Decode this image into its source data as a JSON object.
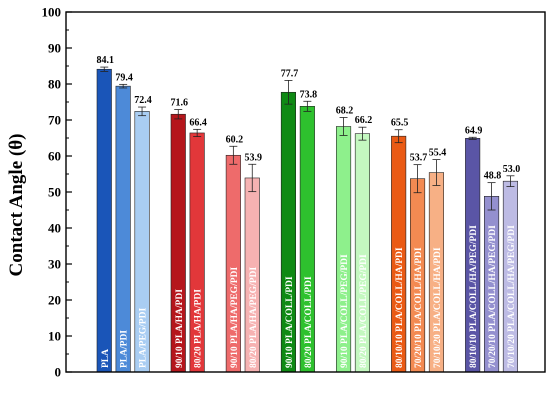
{
  "chart_data": {
    "type": "bar",
    "ylabel": "Contact Angle (θ)",
    "xlabel": "",
    "ylim": [
      0,
      100
    ],
    "y_ticks": [
      0,
      10,
      20,
      30,
      40,
      50,
      60,
      70,
      80,
      90,
      100
    ],
    "grid": false,
    "groups": [
      {
        "bars": [
          {
            "label": "PLA",
            "value": 84.1,
            "error": 0.6,
            "color": "#1a55b8"
          },
          {
            "label": "PLA/PDI",
            "value": 79.4,
            "error": 0.5,
            "color": "#4d8ad8"
          },
          {
            "label": "PLA/PEG/PDI",
            "value": 72.4,
            "error": 1.2,
            "color": "#a9cdf2"
          }
        ]
      },
      {
        "bars": [
          {
            "label": "90/10 PLA/HA/PDI",
            "value": 71.6,
            "error": 1.3,
            "color": "#b5161c"
          },
          {
            "label": "80/20 PLA/HA/PDI",
            "value": 66.4,
            "error": 1.0,
            "color": "#e2373a"
          }
        ]
      },
      {
        "bars": [
          {
            "label": "90/10 PLA/HA/PEG/PDI",
            "value": 60.2,
            "error": 2.5,
            "color": "#ee6b6b"
          },
          {
            "label": "80/20 PLA/HA/PEG/PDI",
            "value": 53.9,
            "error": 3.8,
            "color": "#f6b2b2"
          }
        ]
      },
      {
        "bars": [
          {
            "label": "90/10 PLA/COLL/PDI",
            "value": 77.7,
            "error": 3.3,
            "color": "#0f8a14"
          },
          {
            "label": "80/20 PLA/COLL/PDI",
            "value": 73.8,
            "error": 1.4,
            "color": "#2ec12e"
          }
        ]
      },
      {
        "bars": [
          {
            "label": "90/10 PLA/COLL/PEG/PDI",
            "value": 68.2,
            "error": 2.5,
            "color": "#8ef08c"
          },
          {
            "label": "80/20 PLA/COLL/PEG/PDI",
            "value": 66.2,
            "error": 1.8,
            "color": "#c4f8c0"
          }
        ]
      },
      {
        "bars": [
          {
            "label": "80/10/10 PLA/COLL/HA/PDI",
            "value": 65.5,
            "error": 1.8,
            "color": "#ea5a14"
          },
          {
            "label": "70/20/10 PLA/COLL/HA/PDI",
            "value": 53.7,
            "error": 3.9,
            "color": "#f38a52"
          },
          {
            "label": "70/10/20 PLA/COLL/HA/PDI",
            "value": 55.4,
            "error": 3.6,
            "color": "#f7b085"
          }
        ]
      },
      {
        "bars": [
          {
            "label": "80/10/10 PLA/COLL/HA/PEG/PDI",
            "value": 64.9,
            "error": 0.3,
            "color": "#5a55a6"
          },
          {
            "label": "70/20/10 PLA/COLL/HA/PEG/PDI",
            "value": 48.8,
            "error": 3.8,
            "color": "#9490cf"
          },
          {
            "label": "70/10/20 PLA/COLL/HA/PEG/PDI",
            "value": 53.0,
            "error": 1.5,
            "color": "#bdbbe4"
          }
        ]
      }
    ]
  }
}
